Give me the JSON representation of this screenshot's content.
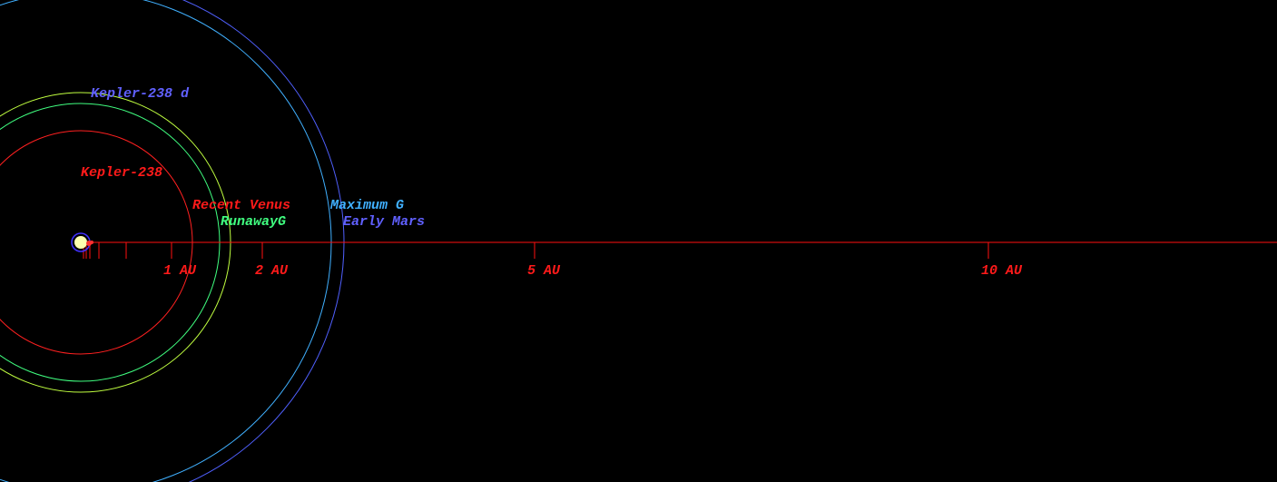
{
  "labels": {
    "star": "Kepler-238",
    "planet": "Kepler-238 d",
    "recent_venus": "Recent Venus",
    "runaway": "RunawayG",
    "maximum": "Maximum G",
    "early_mars": "Early Mars"
  },
  "axis": {
    "ticks": [
      "1 AU",
      "2 AU",
      "5 AU",
      "10 AU"
    ]
  }
}
